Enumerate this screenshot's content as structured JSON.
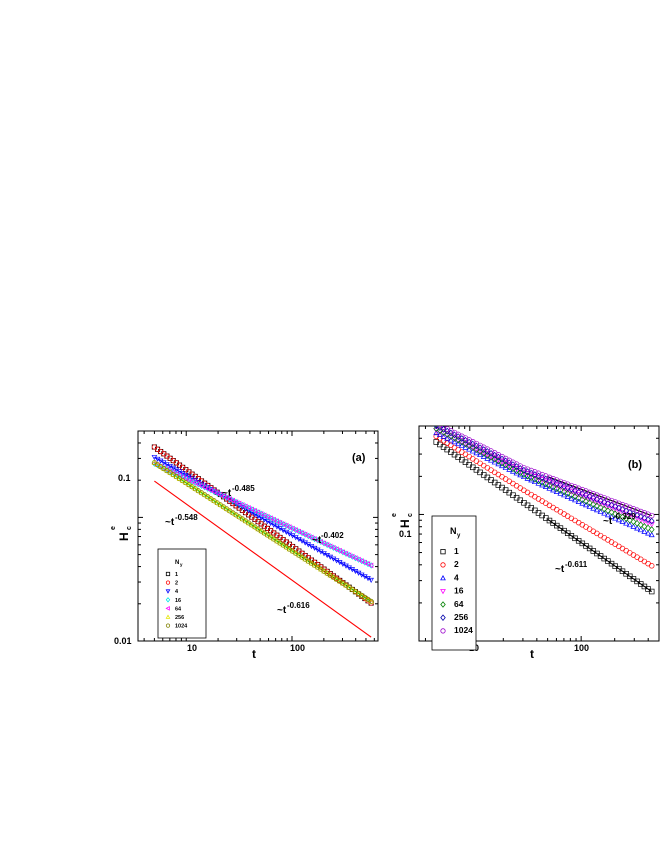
{
  "chart_data": [
    {
      "type": "scatter",
      "panel_label": "(a)",
      "xlabel": "t",
      "ylabel": "H",
      "ylabel_sup": "e",
      "ylabel_sub": "c",
      "xscale": "log",
      "yscale": "log",
      "xlim": [
        3.5,
        650
      ],
      "ylim": [
        0.01,
        0.5
      ],
      "xticks": [
        {
          "value": 10,
          "label": "10"
        },
        {
          "value": 100,
          "label": "100"
        }
      ],
      "yticks": [
        {
          "value": 0.01,
          "label": "0.01"
        },
        {
          "value": 0.1,
          "label": "0.1"
        }
      ],
      "legend": {
        "title": "N",
        "title_sub": "y",
        "position": "bottom-left"
      },
      "series": [
        {
          "name": "1",
          "marker": "square",
          "color": "#000000",
          "a": 1.0,
          "b": 0.616
        },
        {
          "name": "2",
          "marker": "circle",
          "color": "#ff0000",
          "a": 1.0,
          "b": 0.616
        },
        {
          "name": "4",
          "marker": "triangle-down",
          "color": "#0000ff",
          "a": 0.67,
          "b": 0.485
        },
        {
          "name": "16",
          "marker": "diamond",
          "color": "#00e5e5",
          "a": 0.52,
          "b": 0.402
        },
        {
          "name": "64",
          "marker": "triangle-left",
          "color": "#ff00ff",
          "a": 0.52,
          "b": 0.402
        },
        {
          "name": "256",
          "marker": "triangle-up",
          "color": "#e5e500",
          "a": 0.67,
          "b": 0.548
        },
        {
          "name": "1024",
          "marker": "circle",
          "color": "#808000",
          "a": 0.67,
          "b": 0.548
        }
      ],
      "fit_lines": [
        {
          "color": "#ff0000",
          "a": 0.53,
          "b": 0.616,
          "from": 5,
          "to": 560
        },
        {
          "color": "#00cc00",
          "a": 0.67,
          "b": 0.548,
          "from": 5,
          "to": 560
        },
        {
          "color": "#0000ff",
          "a": 0.67,
          "b": 0.485,
          "from": 5,
          "to": 560
        },
        {
          "color": "#00e5e5",
          "a": 0.52,
          "b": 0.402,
          "from": 5,
          "to": 560
        }
      ],
      "annotations": [
        {
          "text": "~t",
          "sup": "-0.485"
        },
        {
          "text": "~t",
          "sup": "-0.402"
        },
        {
          "text": "~t",
          "sup": "-0.548"
        },
        {
          "text": "~t",
          "sup": "-0.616"
        }
      ]
    },
    {
      "type": "scatter",
      "panel_label": "(b)",
      "xlabel": "t",
      "ylabel": "H",
      "ylabel_sup": "e",
      "ylabel_sub": "c",
      "xscale": "log",
      "yscale": "log",
      "xlim": [
        3.5,
        500
      ],
      "ylim": [
        0.01,
        0.5
      ],
      "xticks": [
        {
          "value": 10,
          "label": "10"
        },
        {
          "value": 100,
          "label": "100"
        }
      ],
      "yticks": [
        {
          "value": 0.1,
          "label": "0.1"
        }
      ],
      "legend": {
        "title": "N",
        "title_sub": "y",
        "position": "bottom-left"
      },
      "series": [
        {
          "name": "1",
          "marker": "square",
          "color": "#000000",
          "a": 1.0,
          "b": 0.611
        },
        {
          "name": "2",
          "marker": "circle",
          "color": "#ff0000",
          "a": 0.92,
          "b": 0.52
        },
        {
          "name": "4",
          "marker": "triangle-up",
          "color": "#0000ff",
          "a": 0.78,
          "b": 0.4
        },
        {
          "name": "16",
          "marker": "triangle-down",
          "color": "#ff00ff",
          "a": 0.74,
          "b": 0.36
        },
        {
          "name": "64",
          "marker": "diamond",
          "color": "#008000",
          "a": 0.76,
          "b": 0.38
        },
        {
          "name": "256",
          "marker": "diamond",
          "color": "#0000aa",
          "a": 0.74,
          "b": 0.35
        },
        {
          "name": "1024",
          "marker": "circle",
          "color": "#9900cc",
          "a": 0.72,
          "b": 0.329
        }
      ],
      "fit_lines": [
        {
          "color": "#000000",
          "a": 1.0,
          "b": 0.611,
          "from": 50,
          "to": 430
        },
        {
          "color": "#000000",
          "a": 0.72,
          "b": 0.329,
          "from": 50,
          "to": 430
        }
      ],
      "annotations": [
        {
          "text": "~t",
          "sup": "-0.329"
        },
        {
          "text": "~t",
          "sup": "-0.611"
        }
      ]
    }
  ]
}
